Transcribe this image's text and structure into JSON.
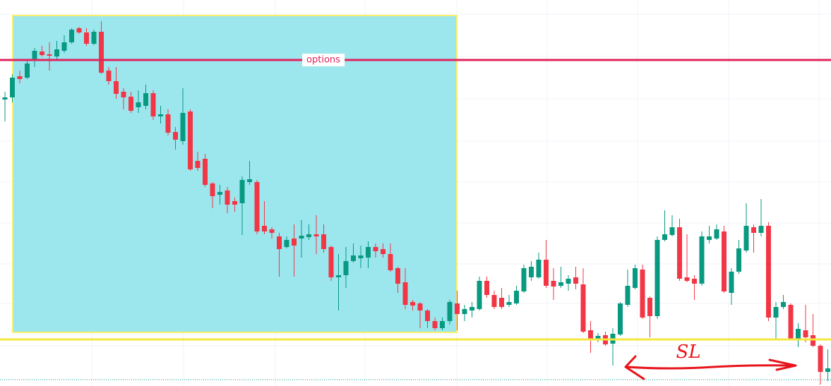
{
  "chart_data": {
    "type": "candlestick",
    "up_color": "#089981",
    "down_color": "#f23645",
    "ylim": [
      0,
      547
    ],
    "series": [
      {
        "open": [
          406,
          409,
          439,
          437,
          462,
          474,
          470,
          467,
          475,
          487,
          507,
          501,
          485,
          502,
          447,
          432,
          417,
          410,
          395,
          397,
          415,
          382,
          385,
          360,
          347,
          389,
          319,
          322,
          287,
          271,
          277,
          262,
          259,
          289,
          289,
          227,
          222,
          212,
          197,
          209,
          209,
          211,
          215,
          215,
          197,
          154,
          157,
          177,
          181,
          182,
          197,
          194,
          187,
          167,
          147,
          119,
          117,
          107,
          92,
          82,
          92,
          117,
          102,
          107,
          109,
          149,
          129,
          125,
          115,
          117,
          134,
          154,
          154,
          179,
          149,
          142,
          145,
          154,
          144,
          79,
          65,
          72,
          60,
          73,
          115,
          139,
          165,
          125,
          99,
          207,
          214,
          225,
          154,
          152,
          145,
          207,
          209,
          219,
          132,
          162,
          192,
          225,
          217,
          227,
          97,
          112,
          115,
          67,
          79,
          72,
          57,
          20
        ],
        "high": [
          417,
          442,
          447,
          462,
          479,
          482,
          487,
          489,
          497,
          507,
          509,
          507,
          505,
          517,
          452,
          452,
          422,
          417,
          419,
          427,
          419,
          397,
          392,
          367,
          422,
          392,
          332,
          329,
          289,
          285,
          282,
          267,
          297,
          319,
          292,
          262,
          225,
          217,
          212,
          229,
          235,
          229,
          242,
          229,
          199,
          187,
          197,
          202,
          199,
          205,
          202,
          202,
          202,
          169,
          167,
          122,
          119,
          109,
          97,
          97,
          122,
          135,
          115,
          119,
          155,
          155,
          135,
          139,
          129,
          142,
          172,
          177,
          189,
          207,
          167,
          169,
          157,
          169,
          167,
          92,
          75,
          77,
          82,
          119,
          165,
          172,
          172,
          127,
          212,
          249,
          242,
          237,
          215,
          157,
          219,
          227,
          229,
          227,
          167,
          207,
          259,
          229,
          265,
          232,
          119,
          129,
          117,
          89,
          115,
          102,
          59,
          52
        ],
        "low": [
          375,
          402,
          429,
          435,
          452,
          467,
          447,
          462,
          472,
          485,
          499,
          482,
          483,
          442,
          427,
          407,
          392,
          387,
          387,
          392,
          377,
          372,
          355,
          335,
          342,
          305,
          305,
          282,
          252,
          257,
          245,
          247,
          214,
          285,
          215,
          215,
          209,
          155,
          195,
          155,
          182,
          207,
          187,
          189,
          149,
          107,
          139,
          175,
          167,
          167,
          182,
          182,
          162,
          132,
          109,
          107,
          82,
          82,
          79,
          79,
          87,
          79,
          92,
          97,
          107,
          125,
          109,
          109,
          112,
          115,
          132,
          149,
          152,
          139,
          122,
          139,
          135,
          137,
          75,
          47,
          62,
          57,
          29,
          71,
          112,
          137,
          95,
          69,
          95,
          205,
          212,
          149,
          147,
          122,
          142,
          202,
          207,
          132,
          115,
          159,
          189,
          189,
          212,
          92,
          67,
          109,
          65,
          55,
          62,
          55,
          2,
          7
        ],
        "close": [
          409,
          437,
          435,
          457,
          475,
          469,
          468,
          477,
          487,
          505,
          501,
          485,
          502,
          444,
          432,
          414,
          409,
          390,
          402,
          415,
          382,
          385,
          359,
          349,
          387,
          307,
          309,
          285,
          269,
          275,
          257,
          257,
          292,
          293,
          219,
          219,
          217,
          194,
          207,
          199,
          213,
          215,
          212,
          194,
          154,
          157,
          177,
          185,
          185,
          197,
          191,
          187,
          164,
          145,
          115,
          114,
          107,
          92,
          82,
          92,
          119,
          102,
          109,
          112,
          149,
          129,
          112,
          112,
          119,
          135,
          167,
          169,
          179,
          142,
          141,
          147,
          152,
          145,
          77,
          65,
          71,
          59,
          74,
          117,
          142,
          167,
          97,
          99,
          207,
          215,
          225,
          152,
          149,
          145,
          212,
          212,
          222,
          134,
          162,
          195,
          227,
          217,
          227,
          97,
          112,
          119,
          67,
          81,
          69,
          57,
          20,
          25
        ]
      }
    ],
    "levels": [
      {
        "value": 462,
        "label": "options",
        "color": "#e0245e"
      },
      {
        "value": 66,
        "color": "#f5e73c"
      }
    ],
    "annotation": "SL"
  }
}
